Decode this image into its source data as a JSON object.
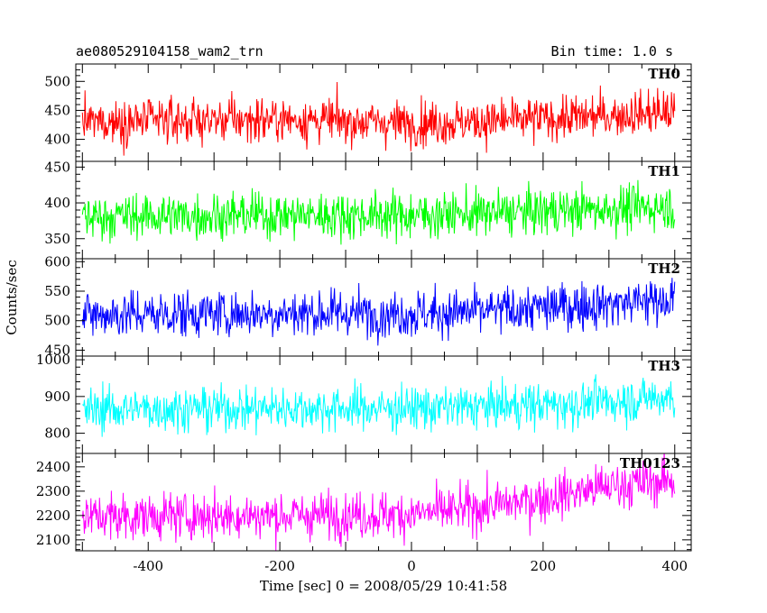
{
  "header": {
    "title": "ae080529104158_wam2_trn",
    "bin_time": "Bin time: 1.0 s"
  },
  "chart_data": {
    "type": "line",
    "title": "ae080529104158_wam2_trn",
    "subtitle": "Bin time: 1.0 s",
    "xlabel": "Time [sec] 0 = 2008/05/29 10:41:58",
    "ylabel": "Counts/sec",
    "xlim": [
      -510,
      425
    ],
    "xticks": [
      -400,
      -200,
      0,
      200,
      400
    ],
    "x_start": -500,
    "x_end": 400,
    "bin_seconds": 1.0,
    "grid": false,
    "panels": [
      {
        "name": "TH0",
        "color": "#ff0000",
        "ylim": [
          362,
          530
        ],
        "yticks": [
          400,
          450,
          500
        ],
        "trend": [
          {
            "x": -500,
            "y": 430
          },
          {
            "x": -200,
            "y": 435
          },
          {
            "x": 0,
            "y": 428
          },
          {
            "x": 100,
            "y": 430
          },
          {
            "x": 250,
            "y": 438
          },
          {
            "x": 400,
            "y": 448
          }
        ],
        "noise_sd": 19
      },
      {
        "name": "TH1",
        "color": "#00ff00",
        "ylim": [
          322,
          458
        ],
        "yticks": [
          350,
          400,
          450
        ],
        "trend": [
          {
            "x": -500,
            "y": 381
          },
          {
            "x": -200,
            "y": 383
          },
          {
            "x": 0,
            "y": 383
          },
          {
            "x": 100,
            "y": 385
          },
          {
            "x": 250,
            "y": 390
          },
          {
            "x": 400,
            "y": 395
          }
        ],
        "noise_sd": 16
      },
      {
        "name": "TH2",
        "color": "#0000ff",
        "ylim": [
          440,
          605
        ],
        "yticks": [
          450,
          500,
          550,
          600
        ],
        "trend": [
          {
            "x": -500,
            "y": 510
          },
          {
            "x": -200,
            "y": 513
          },
          {
            "x": 0,
            "y": 512
          },
          {
            "x": 100,
            "y": 515
          },
          {
            "x": 250,
            "y": 525
          },
          {
            "x": 400,
            "y": 537
          }
        ],
        "noise_sd": 20
      },
      {
        "name": "TH3",
        "color": "#00ffff",
        "ylim": [
          745,
          1010
        ],
        "yticks": [
          800,
          900,
          1000
        ],
        "trend": [
          {
            "x": -500,
            "y": 865
          },
          {
            "x": -200,
            "y": 868
          },
          {
            "x": 0,
            "y": 868
          },
          {
            "x": 100,
            "y": 872
          },
          {
            "x": 250,
            "y": 880
          },
          {
            "x": 400,
            "y": 900
          }
        ],
        "noise_sd": 30
      },
      {
        "name": "TH0123",
        "color": "#ff00ff",
        "ylim": [
          2055,
          2455
        ],
        "yticks": [
          2100,
          2200,
          2300,
          2400
        ],
        "trend": [
          {
            "x": -500,
            "y": 2195
          },
          {
            "x": -200,
            "y": 2200
          },
          {
            "x": 0,
            "y": 2205
          },
          {
            "x": 100,
            "y": 2230
          },
          {
            "x": 200,
            "y": 2270
          },
          {
            "x": 300,
            "y": 2320
          },
          {
            "x": 400,
            "y": 2345
          }
        ],
        "noise_sd": 48
      }
    ]
  }
}
